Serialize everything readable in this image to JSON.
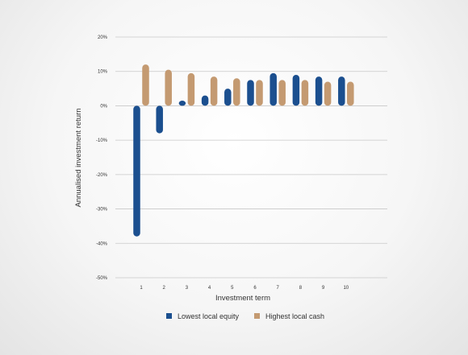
{
  "chart_data": {
    "type": "bar",
    "categories": [
      "1",
      "2",
      "3",
      "4",
      "5",
      "6",
      "7",
      "8",
      "9",
      "10"
    ],
    "series": [
      {
        "name": "Lowest local equity",
        "color": "#1b4f8f",
        "values": [
          -38,
          -8,
          1.5,
          3,
          5,
          7.5,
          9.5,
          9,
          8.5,
          8.5
        ]
      },
      {
        "name": "Highest local cash",
        "color": "#c49a71",
        "values": [
          12,
          10.5,
          9.5,
          8.5,
          8,
          7.5,
          7.5,
          7.5,
          7,
          7
        ]
      }
    ],
    "xlabel": "Investment term",
    "ylabel": "Annualised investment return",
    "ylim": [
      -50,
      20
    ],
    "yticks": [
      {
        "value": 20,
        "label": "20%"
      },
      {
        "value": 10,
        "label": "10%"
      },
      {
        "value": 0,
        "label": "0%"
      },
      {
        "value": -10,
        "label": "-10%"
      },
      {
        "value": -20,
        "label": "-20%"
      },
      {
        "value": -30,
        "label": "-30%"
      },
      {
        "value": -40,
        "label": "-40%"
      },
      {
        "value": -50,
        "label": "-50%"
      }
    ],
    "grid": true,
    "legend_position": "bottom-center"
  }
}
